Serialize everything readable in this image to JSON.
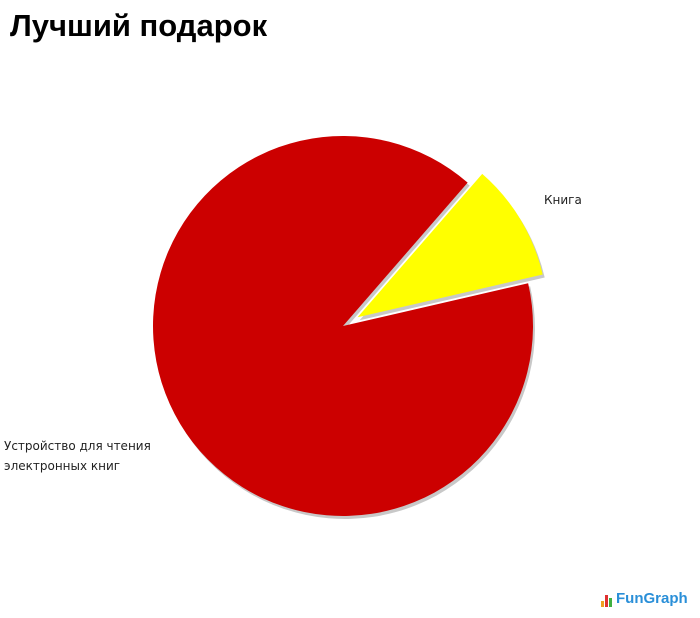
{
  "chart_data": {
    "type": "pie",
    "title": "Лучший подарок",
    "slices": [
      {
        "label": "Книга",
        "value": 10,
        "color": "#ffff00",
        "exploded": true
      },
      {
        "label": "Устройство для чтения электронных книг",
        "value": 90,
        "color": "#cc0000",
        "exploded": false
      }
    ],
    "legend": "none",
    "labels_placement": "outside"
  },
  "logo": {
    "text": "FunGraph"
  }
}
